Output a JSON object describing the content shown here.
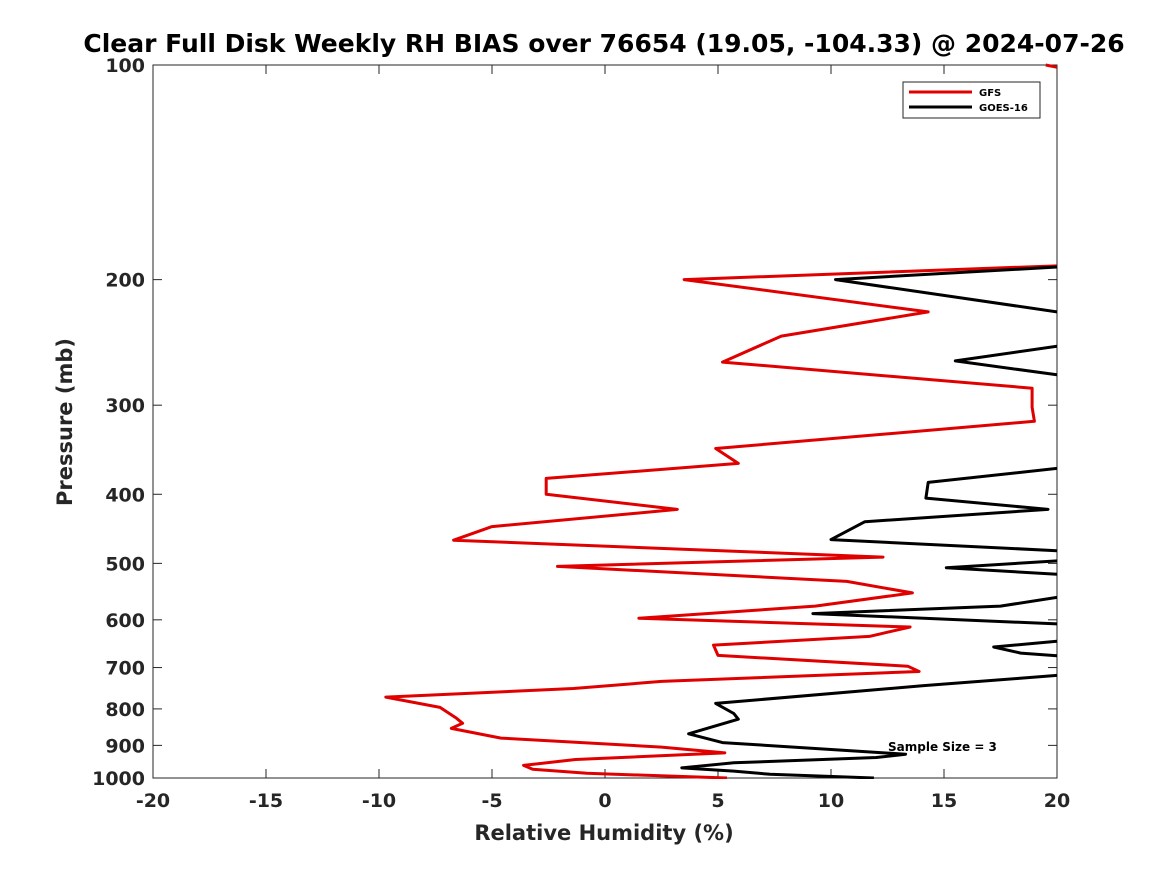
{
  "chart_data": {
    "type": "line",
    "title": "Clear Full Disk Weekly RH BIAS over 76654 (19.05, -104.33) @ 2024-07-26",
    "xlabel": "Relative Humidity (%)",
    "ylabel": "Pressure (mb)",
    "xlim": [
      -20,
      20
    ],
    "ylim": [
      100,
      1000
    ],
    "yscale": "log",
    "ydirection": "reverse",
    "x_ticks": [
      "-20",
      "-15",
      "-10",
      "-5",
      "0",
      "5",
      "10",
      "15",
      "20"
    ],
    "y_ticks": [
      "100",
      "200",
      "300",
      "400",
      "500",
      "600",
      "700",
      "800",
      "900",
      "1000"
    ],
    "legend_position": "top-right",
    "annotation": "Sample Size = 3",
    "series": [
      {
        "name": "GFS",
        "color": "#e00000",
        "points": [
          [
            19.5,
            100
          ],
          [
            20.2,
            101
          ],
          [
            20.5,
            191
          ],
          [
            3.5,
            200
          ],
          [
            14.3,
            222
          ],
          [
            7.8,
            240
          ],
          [
            5.2,
            261
          ],
          [
            18.9,
            284
          ],
          [
            18.9,
            302
          ],
          [
            19.0,
            316
          ],
          [
            4.9,
            345
          ],
          [
            5.9,
            362
          ],
          [
            -2.6,
            380
          ],
          [
            -2.6,
            400
          ],
          [
            3.2,
            420
          ],
          [
            -5.0,
            444
          ],
          [
            -6.7,
            464
          ],
          [
            12.3,
            490
          ],
          [
            -2.1,
            505
          ],
          [
            10.7,
            530
          ],
          [
            13.6,
            550
          ],
          [
            9.3,
            574
          ],
          [
            1.5,
            597
          ],
          [
            13.5,
            614
          ],
          [
            11.7,
            633
          ],
          [
            4.8,
            651
          ],
          [
            5.0,
            673
          ],
          [
            13.4,
            697
          ],
          [
            13.9,
            709
          ],
          [
            2.5,
            732
          ],
          [
            -1.4,
            749
          ],
          [
            -9.7,
            770
          ],
          [
            -7.3,
            796
          ],
          [
            -6.6,
            823
          ],
          [
            -6.3,
            838
          ],
          [
            -6.8,
            852
          ],
          [
            -4.6,
            879
          ],
          [
            2.5,
            905
          ],
          [
            5.3,
            922
          ],
          [
            -1.3,
            942
          ],
          [
            -3.6,
            960
          ],
          [
            -3.2,
            972
          ],
          [
            -0.8,
            985
          ],
          [
            5.4,
            1000
          ]
        ]
      },
      {
        "name": "GOES-16",
        "color": "#000000",
        "segments": [
          [
            [
              20.0,
              192
            ],
            [
              10.2,
              200
            ],
            [
              20.0,
              222
            ]
          ],
          [
            [
              20.0,
              248
            ],
            [
              15.5,
              260
            ],
            [
              20.0,
              272
            ]
          ],
          [
            [
              20.0,
              368
            ],
            [
              14.3,
              385
            ],
            [
              14.2,
              405
            ],
            [
              19.6,
              420
            ],
            [
              11.5,
              437
            ],
            [
              10.0,
              463
            ],
            [
              20.0,
              480
            ]
          ],
          [
            [
              20.0,
              496
            ],
            [
              15.1,
              507
            ],
            [
              20.0,
              518
            ]
          ],
          [
            [
              20.0,
              558
            ],
            [
              17.5,
              574
            ],
            [
              9.2,
              588
            ],
            [
              20.0,
              608
            ]
          ],
          [
            [
              20.0,
              643
            ],
            [
              17.2,
              655
            ],
            [
              18.4,
              668
            ],
            [
              20.0,
              674
            ]
          ],
          [
            [
              20.0,
              718
            ],
            [
              18.3,
              725
            ],
            [
              14.1,
              742
            ],
            [
              4.9,
              786
            ],
            [
              5.7,
              812
            ],
            [
              5.9,
              827
            ],
            [
              3.7,
              867
            ],
            [
              5.2,
              892
            ],
            [
              10.7,
              915
            ],
            [
              13.3,
              926
            ],
            [
              12.0,
              936
            ],
            [
              5.7,
              952
            ],
            [
              3.4,
              968
            ],
            [
              5.7,
              978
            ],
            [
              7.3,
              988
            ],
            [
              11.9,
              1000
            ]
          ]
        ]
      }
    ]
  }
}
